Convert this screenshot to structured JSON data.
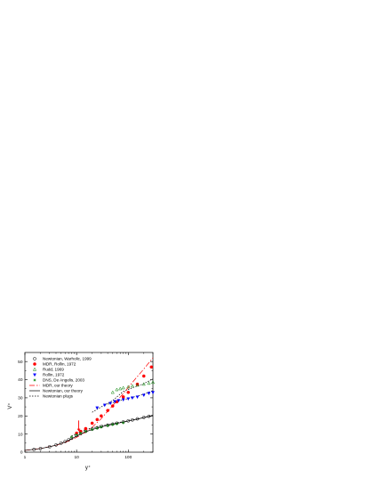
{
  "chart_data": {
    "type": "scatter",
    "title": "",
    "xlabel": "y⁺",
    "ylabel": "V⁺",
    "x_scale": "log",
    "xlim": [
      1,
      300
    ],
    "ylim": [
      0,
      55
    ],
    "x_tick_labels": [
      {
        "value": 1,
        "label": "1"
      },
      {
        "value": 10,
        "label": "10"
      },
      {
        "value": 100,
        "label": "100"
      }
    ],
    "y_tick_labels": [
      {
        "value": 0,
        "label": "0"
      },
      {
        "value": 10,
        "label": "10"
      },
      {
        "value": 20,
        "label": "20"
      },
      {
        "value": 30,
        "label": "30"
      },
      {
        "value": 40,
        "label": "40"
      },
      {
        "value": 50,
        "label": "50"
      }
    ],
    "grid": false,
    "legend_position": "top-left",
    "annotation": {
      "type": "arrow",
      "color": "#ff0000",
      "x": 11,
      "y_from": 17.5,
      "y_to": 11.5
    },
    "series": [
      {
        "name": "Newtonian, Warholic, 1999",
        "kind": "markers",
        "marker": "circle-open",
        "color": "#000000",
        "x": [
          1.5,
          2,
          3,
          4,
          5,
          6,
          7,
          8,
          10,
          12,
          15,
          20,
          25,
          30,
          40,
          50,
          60,
          80,
          100,
          120,
          150,
          200,
          250
        ],
        "y": [
          1.5,
          2.0,
          3.0,
          4.0,
          5.0,
          5.9,
          6.8,
          7.7,
          9.2,
          10.3,
          11.5,
          12.7,
          13.5,
          14.1,
          14.9,
          15.5,
          16.0,
          16.7,
          17.3,
          17.8,
          18.4,
          19.2,
          19.8
        ]
      },
      {
        "name": "MDR, Rollin, 1972",
        "kind": "markers",
        "marker": "circle-filled",
        "color": "#ff0000",
        "x": [
          10,
          12,
          15,
          20,
          25,
          30,
          40,
          50,
          60,
          80,
          100,
          150,
          200,
          280
        ],
        "y": [
          10.5,
          11.5,
          13.0,
          16.0,
          18.0,
          20.0,
          23.0,
          25.5,
          27.8,
          30.5,
          33.0,
          37.5,
          42.0,
          47.0
        ]
      },
      {
        "name": "Rudd, 1969",
        "kind": "markers",
        "marker": "triangle-open",
        "color": "#008000",
        "x": [
          50,
          60,
          70,
          80,
          100,
          120,
          150,
          200,
          250,
          300
        ],
        "y": [
          33.0,
          34.5,
          35.0,
          35.5,
          36.0,
          36.5,
          37.0,
          37.5,
          38.0,
          38.5
        ]
      },
      {
        "name": "Rollin, 1972",
        "kind": "markers",
        "marker": "triangle-down-filled",
        "color": "#0000ff",
        "x": [
          25,
          35,
          45,
          55,
          65,
          80,
          100,
          120,
          150,
          200,
          250,
          300
        ],
        "y": [
          24.5,
          26.0,
          27.0,
          28.0,
          28.5,
          29.0,
          29.5,
          30.0,
          30.5,
          31.5,
          32.5,
          33.0
        ]
      },
      {
        "name": "DNS, De Angelis, 2003",
        "kind": "markers",
        "marker": "star",
        "color": "#008000",
        "x": [
          8,
          10,
          12,
          15,
          20,
          25,
          30,
          40,
          50,
          60,
          80
        ],
        "y": [
          8.4,
          9.7,
          10.6,
          11.5,
          12.5,
          13.2,
          13.8,
          14.6,
          15.2,
          15.6,
          16.2
        ]
      },
      {
        "name": "MDR, our theory",
        "kind": "line",
        "dash": "6,2,1.5,2",
        "color": "#ff0000",
        "x": [
          1,
          2,
          4,
          6,
          8,
          10,
          12,
          15,
          20,
          30,
          50,
          80,
          120,
          200,
          300
        ],
        "y": [
          1.0,
          2.0,
          3.8,
          5.4,
          6.9,
          8.2,
          9.4,
          11.1,
          13.8,
          18.5,
          25.7,
          32.3,
          38.5,
          45.9,
          52.1
        ]
      },
      {
        "name": "Newtonian, our theory",
        "kind": "line",
        "dash": "",
        "color": "#000000",
        "x": [
          1,
          2,
          3,
          4,
          5,
          6,
          7,
          8,
          10,
          12,
          15,
          20,
          25,
          30,
          40,
          50,
          60,
          80,
          100,
          150,
          200,
          300
        ],
        "y": [
          1.0,
          2.0,
          3.0,
          3.9,
          4.8,
          5.7,
          6.6,
          7.4,
          8.9,
          10.0,
          11.3,
          12.5,
          13.3,
          14.0,
          14.8,
          15.4,
          15.9,
          16.6,
          17.2,
          18.3,
          19.1,
          20.1
        ]
      },
      {
        "name": "Newtonian plugs",
        "kind": "line",
        "dash": "1.5,1.5",
        "color": "#000000",
        "x": [
          20,
          30,
          50,
          80,
          120,
          200,
          300
        ],
        "y": [
          22.0,
          25.0,
          28.5,
          33.5,
          35.5,
          37.8,
          40.5
        ],
        "extra_segments": [
          {
            "x": [
              40,
              60,
              100,
              150,
              200,
              300
            ],
            "y": [
              26.5,
              28.0,
              29.6,
              31.0,
              32.0,
              34.0
            ]
          },
          {
            "x": [
              8,
              15,
              25,
              40,
              80,
              150,
              300
            ],
            "y": [
              9.0,
              12.6,
              14.0,
              15.4,
              16.8,
              18.2,
              20.5
            ]
          }
        ]
      }
    ]
  }
}
